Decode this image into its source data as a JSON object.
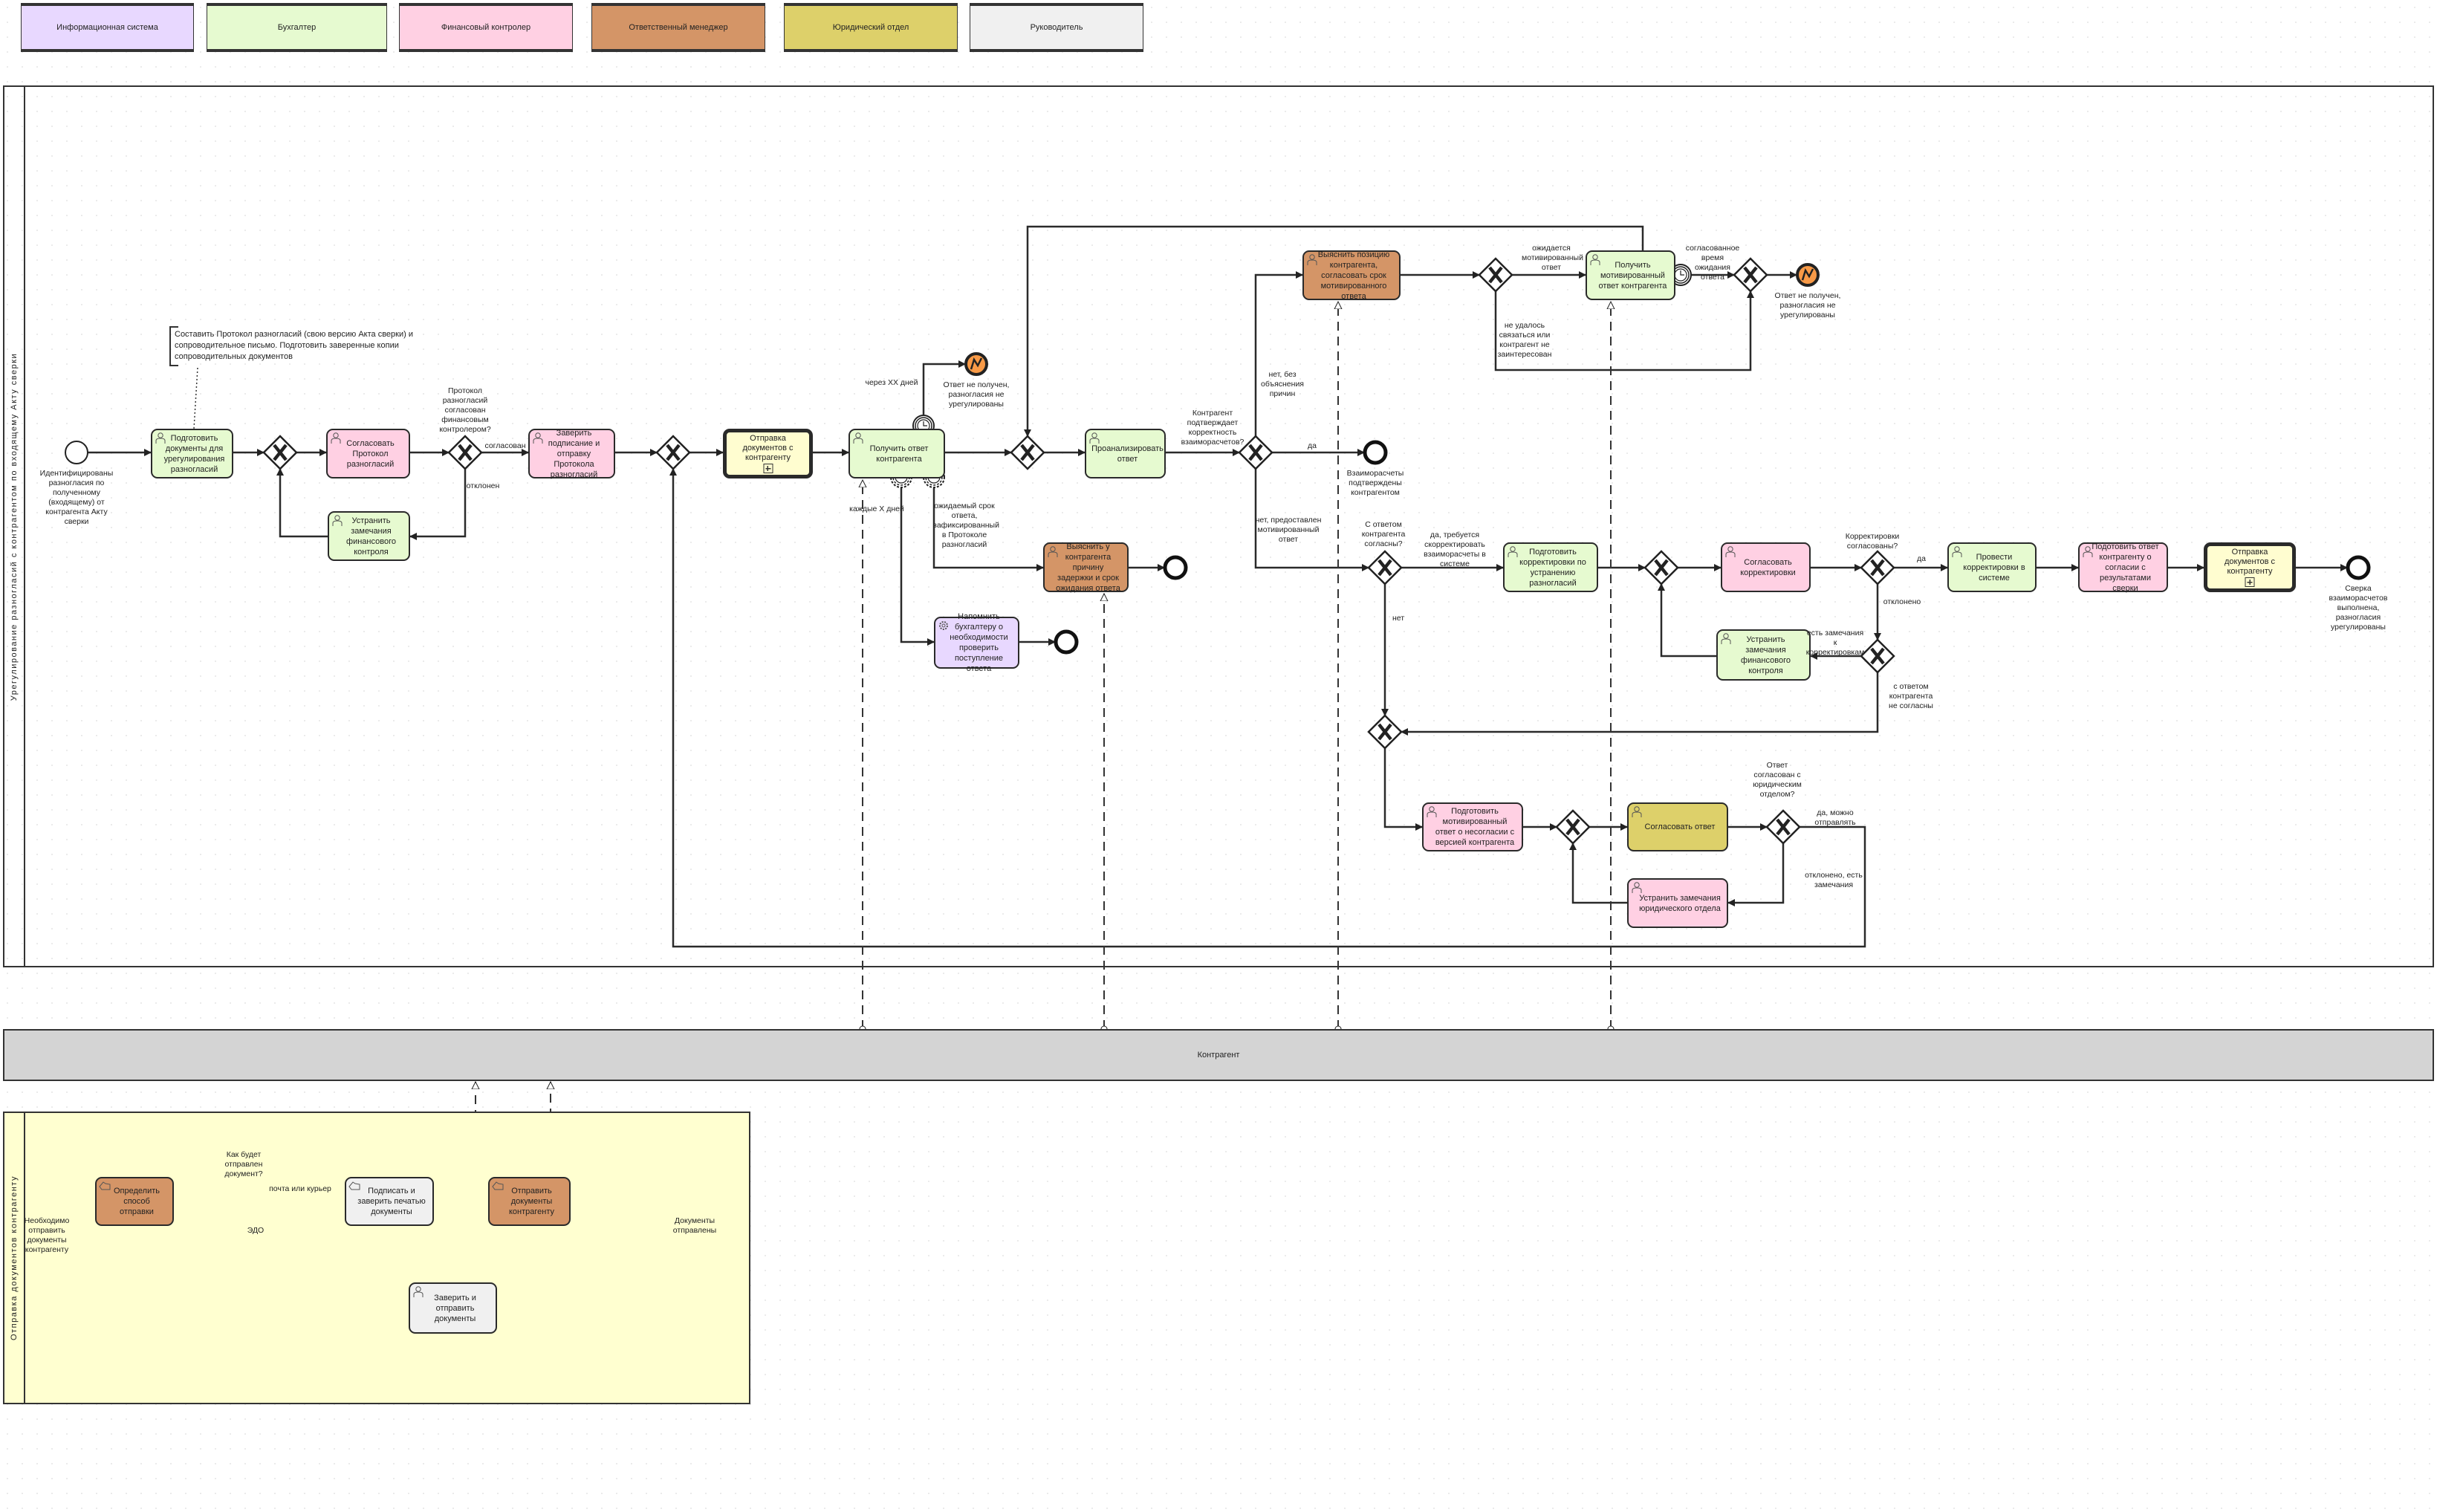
{
  "legend": [
    {
      "label": "Информационная система",
      "color": "#e8d8ff"
    },
    {
      "label": "Бухгалтер",
      "color": "#e6fad0"
    },
    {
      "label": "Финансовый контролер",
      "color": "#ffd0e3"
    },
    {
      "label": "Ответственный менеджер",
      "color": "#d49567"
    },
    {
      "label": "Юридический отдел",
      "color": "#ddd06a"
    },
    {
      "label": "Руководитель",
      "color": "#f0f0f0"
    }
  ],
  "pools": {
    "main": "Урегулирование разногласий  с контрагентом по входящему Акту сверки",
    "contractor": "Контрагент",
    "sending": "Отправка документов контрагенту"
  },
  "annotation": "Составить Протокол разногласий (свою версию Акта сверки) и сопроводительное письмо. Подготовить заверенные копии сопроводительных документов",
  "tasks": {
    "t1": "Подготовить документы для урегулирования разногласий",
    "t2": "Согласовать Протокол разногласий",
    "t3": "Устранить замечания финансового контроля",
    "t4": "Заверить подписание и отправку Протокола разногласий",
    "t5": "Отправка документов с контрагенту",
    "t6": "Получить ответ контрагента",
    "t7": "Проанализировать ответ",
    "t8": "Выяснить позицию контрагента, согласовать срок мотивированного ответа",
    "t9": "Получить мотивированный ответ контрагента",
    "t10": "Выяснить у контрагента причину задержки и срок ожидания ответа",
    "t11": "Напомнить бухгалтеру о необходимости проверить поступление ответа",
    "t12": "Подготовить корректировки по устранению разногласий",
    "t13": "Согласовать корректировки",
    "t14": "Провести корректировки в системе",
    "t15": "Подотовить ответ контрагенту о согласии с результатами сверки",
    "t16": "Отправка документов с контрагенту",
    "t17": "Устранить замечания финансового контроля",
    "t18": "Подготовить мотивированный ответ о несогласии с версией контрагента",
    "t19": "Согласовать ответ",
    "t20": "Устранить замечания юридического отдела",
    "b1": "Определить способ отправки",
    "b2": "Подписать и заверить печатью документы",
    "b3": "Отправить документы контрагенту",
    "b4": "Заверить и отправить документы"
  },
  "events": {
    "e_start": "Идентифицированы разногласия по полученному (входящему) от контрагента Акту сверки",
    "e_err1": "Ответ не получен, разногласия не урегулированы",
    "e_end1": "Взаиморасчеты подтверждены контрагентом",
    "e_err2": "Ответ не получен, разногласия не урегулированы",
    "e_end4": "Сверка взаиморасчетов выполнена, разногласия урегулированы",
    "be_start": "Необходимо отправить документы контрагенту",
    "be_end": "Документы отправлены"
  },
  "edge_labels": {
    "g2_q": "Протокол разногласий согласован финансовым контролером?",
    "g2_yes": "согласован",
    "g2_no": "отклонен",
    "timer_xx": "через XX дней",
    "timer_x": "каждые X дней",
    "timer_exp": "ожидаемый срок ответа, зафиксированный в Протоколе разногласий",
    "g5_q": "Контрагент подтверждает корректность взаиморасчетов?",
    "g5_yes": "да",
    "g5_noexp": "нет, без объяснения причин",
    "g5_nomot": "нет, предоставлен мотивированный ответ",
    "g6_wait": "ожидается мотивированный ответ",
    "g6_fail": "не удалось связаться или контрагент не заинтересован",
    "t9_time": "согласованное время ожидания ответа",
    "g8_q": "С ответом контрагента согласны?",
    "g8_yes": "да, требуется скорректировать взаиморасчеты в системе",
    "g8_no": "нет",
    "g10_q": "Корректировки согласованы?",
    "g10_yes": "да",
    "g10_no": "отклонено",
    "g11_rem": "есть замечания к корректировкам",
    "g11_dis": "с ответом контрагента не согласны",
    "g14_q": "Ответ согласован с юридическим отделом?",
    "g14_yes": "да, можно отправлять",
    "g14_no": "отклонено, есть замечания",
    "bg1_q": "Как будет отправлен документ?",
    "bg1_mail": "почта или курьер",
    "bg1_edo": "ЭДО"
  },
  "colors": {
    "error_event": "#f89a47",
    "subprocess": "#fffdd0",
    "sending_pool": "#ffffd0",
    "contractor_pool": "#d4d4d4"
  }
}
